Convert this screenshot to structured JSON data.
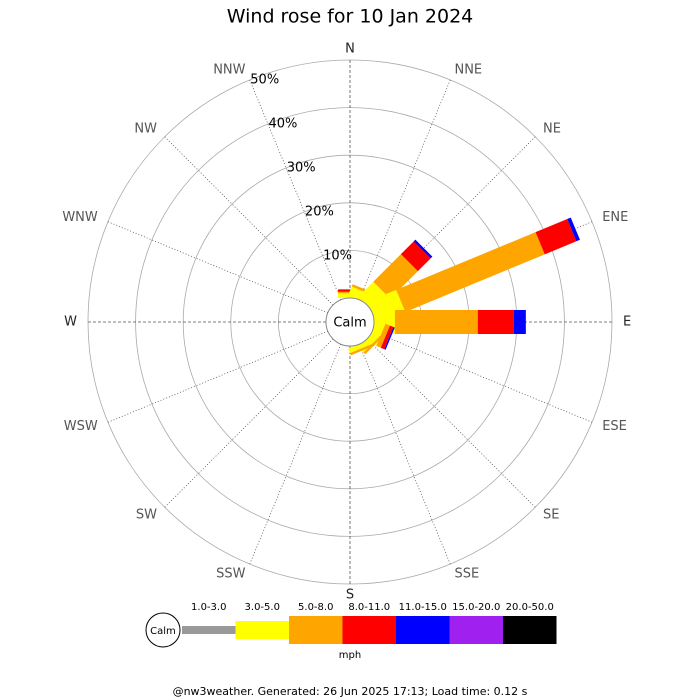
{
  "chart_data": {
    "type": "wind_rose",
    "title": "Wind rose for 10 Jan 2024",
    "directions": [
      "N",
      "NNE",
      "NE",
      "ENE",
      "E",
      "ESE",
      "SE",
      "SSE",
      "S",
      "SSW",
      "SW",
      "WSW",
      "W",
      "WNW",
      "NW",
      "NNW"
    ],
    "rlim": [
      0,
      50
    ],
    "rticks": [
      {
        "value": 10,
        "label": "10%"
      },
      {
        "value": 20,
        "label": "20%"
      },
      {
        "value": 30,
        "label": "30%"
      },
      {
        "value": 40,
        "label": "40%"
      },
      {
        "value": 50,
        "label": "50%"
      }
    ],
    "calm_label": "Calm",
    "unit_label": "mph",
    "series": [
      {
        "name": "1.0-3.0",
        "color": "#999999",
        "values": [
          0,
          0,
          0,
          0,
          0,
          0,
          0,
          0,
          0,
          0,
          0,
          0,
          0,
          0,
          0,
          0
        ]
      },
      {
        "name": "3.0-5.0",
        "color": "#ffff00",
        "values": [
          1.0,
          2.0,
          4.4,
          6.5,
          4.4,
          2.0,
          1.5,
          1.0,
          0,
          0,
          0,
          0,
          0,
          0,
          0,
          0
        ]
      },
      {
        "name": "5.0-8.0",
        "color": "#ffa500",
        "values": [
          0.3,
          0.5,
          8.2,
          31.7,
          17.4,
          1.0,
          0.5,
          0.5,
          0,
          0,
          0,
          0,
          0,
          0,
          0,
          0
        ]
      },
      {
        "name": "8.0-11.0",
        "color": "#ff0000",
        "values": [
          0.5,
          0,
          3.8,
          7.2,
          7.6,
          0.8,
          0,
          0,
          0,
          0,
          0,
          0,
          0,
          0,
          0,
          0
        ]
      },
      {
        "name": "11.0-15.0",
        "color": "#0000ff",
        "values": [
          0,
          0,
          0.5,
          0.8,
          2.5,
          0.3,
          0,
          0,
          0,
          0,
          0,
          0,
          0,
          0,
          0,
          0
        ]
      },
      {
        "name": "15.0-20.0",
        "color": "#a020f0",
        "values": [
          0,
          0,
          0,
          0,
          0,
          0,
          0,
          0,
          0,
          0,
          0,
          0,
          0,
          0,
          0,
          0
        ]
      },
      {
        "name": "20.0-50.0",
        "color": "#000000",
        "values": [
          0,
          0,
          0,
          0,
          0,
          0,
          0,
          0,
          0,
          0,
          0,
          0,
          0,
          0,
          0,
          0
        ]
      }
    ]
  },
  "footer": "@nw3weather. Generated: 26 Jun 2025 17:13; Load time: 0.12 s"
}
